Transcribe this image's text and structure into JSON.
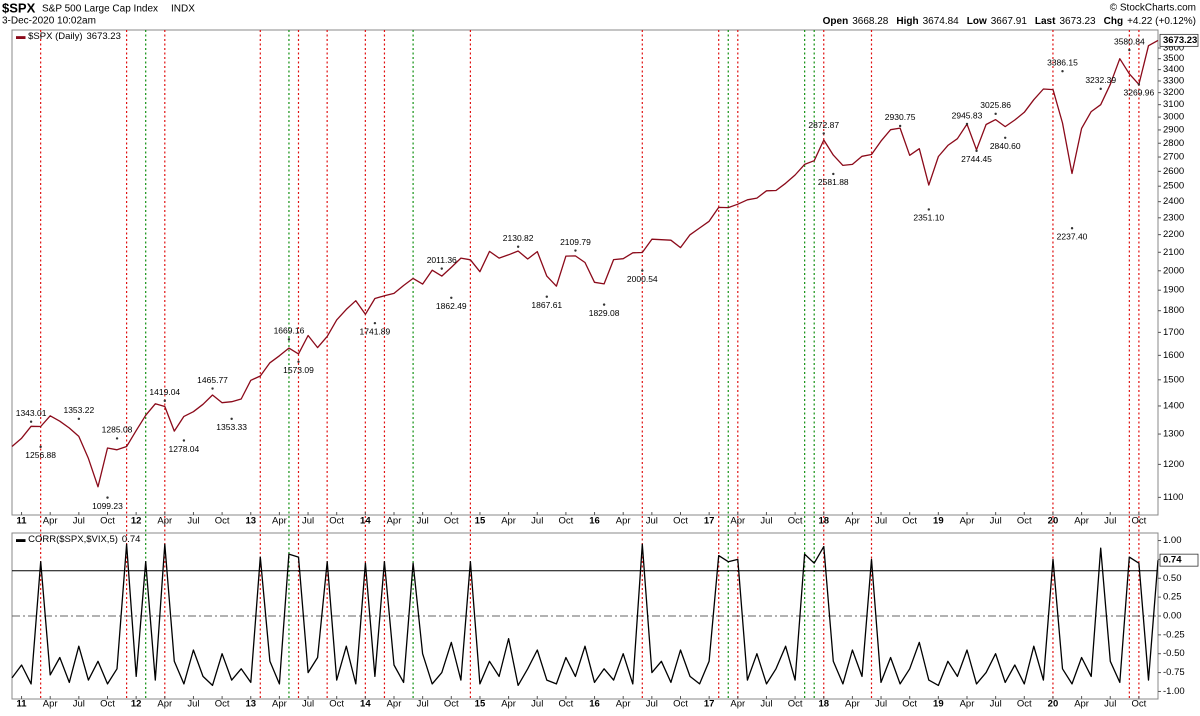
{
  "header": {
    "symbol": "$SPX",
    "name": "S&P 500 Large Cap Index",
    "exchange": "INDX",
    "timestamp": "3-Dec-2020 10:02am",
    "credit": "© StockCharts.com",
    "quote": [
      {
        "label": "Open",
        "value": 3668.28
      },
      {
        "label": "High",
        "value": 3674.84
      },
      {
        "label": "Low",
        "value": 3667.91
      },
      {
        "label": "Last",
        "value": 3673.23
      },
      {
        "label": "Chg",
        "value": "+4.22 (+0.12%)"
      }
    ]
  },
  "chart_data": [
    {
      "type": "line",
      "legend": "$SPX (Daily)",
      "color": "#8b0a1a",
      "yscale": "log",
      "grid": false,
      "x": [
        "2010-12",
        "2011-01",
        "2011-02",
        "2011-03",
        "2011-04",
        "2011-05",
        "2011-06",
        "2011-07",
        "2011-08",
        "2011-09",
        "2011-10",
        "2011-11",
        "2011-12",
        "2012-01",
        "2012-02",
        "2012-03",
        "2012-04",
        "2012-05",
        "2012-06",
        "2012-07",
        "2012-08",
        "2012-09",
        "2012-10",
        "2012-11",
        "2012-12",
        "2013-01",
        "2013-02",
        "2013-03",
        "2013-04",
        "2013-05",
        "2013-06",
        "2013-07",
        "2013-08",
        "2013-09",
        "2013-10",
        "2013-11",
        "2013-12",
        "2014-01",
        "2014-02",
        "2014-03",
        "2014-04",
        "2014-05",
        "2014-06",
        "2014-07",
        "2014-08",
        "2014-09",
        "2014-10",
        "2014-11",
        "2014-12",
        "2015-01",
        "2015-02",
        "2015-03",
        "2015-04",
        "2015-05",
        "2015-06",
        "2015-07",
        "2015-08",
        "2015-09",
        "2015-10",
        "2015-11",
        "2015-12",
        "2016-01",
        "2016-02",
        "2016-03",
        "2016-04",
        "2016-05",
        "2016-06",
        "2016-07",
        "2016-08",
        "2016-09",
        "2016-10",
        "2016-11",
        "2016-12",
        "2017-01",
        "2017-02",
        "2017-03",
        "2017-04",
        "2017-05",
        "2017-06",
        "2017-07",
        "2017-08",
        "2017-09",
        "2017-10",
        "2017-11",
        "2017-12",
        "2018-01",
        "2018-02",
        "2018-03",
        "2018-04",
        "2018-05",
        "2018-06",
        "2018-07",
        "2018-08",
        "2018-09",
        "2018-10",
        "2018-11",
        "2018-12",
        "2019-01",
        "2019-02",
        "2019-03",
        "2019-04",
        "2019-05",
        "2019-06",
        "2019-07",
        "2019-08",
        "2019-09",
        "2019-10",
        "2019-11",
        "2019-12",
        "2020-01",
        "2020-02",
        "2020-03",
        "2020-04",
        "2020-05",
        "2020-06",
        "2020-07",
        "2020-08",
        "2020-09",
        "2020-10",
        "2020-11",
        "2020-12"
      ],
      "values": [
        1258,
        1286,
        1327,
        1326,
        1364,
        1345,
        1321,
        1292,
        1219,
        1131,
        1253,
        1247,
        1258,
        1312,
        1366,
        1408,
        1398,
        1310,
        1362,
        1379,
        1406,
        1441,
        1412,
        1416,
        1426,
        1498,
        1515,
        1569,
        1598,
        1631,
        1606,
        1686,
        1633,
        1682,
        1757,
        1806,
        1848,
        1783,
        1859,
        1872,
        1884,
        1924,
        1960,
        1931,
        2003,
        1972,
        2018,
        2068,
        2059,
        1995,
        2105,
        2068,
        2086,
        2107,
        2063,
        2104,
        1972,
        1920,
        2079,
        2080,
        2044,
        1940,
        1932,
        2060,
        2065,
        2097,
        2099,
        2174,
        2171,
        2168,
        2126,
        2199,
        2239,
        2279,
        2364,
        2363,
        2384,
        2412,
        2423,
        2470,
        2472,
        2519,
        2575,
        2648,
        2674,
        2824,
        2714,
        2641,
        2648,
        2705,
        2718,
        2816,
        2902,
        2914,
        2712,
        2760,
        2507,
        2704,
        2784,
        2834,
        2945,
        2752,
        2942,
        2980,
        2926,
        2977,
        3038,
        3141,
        3231,
        3226,
        2954,
        2585,
        2912,
        3044,
        3100,
        3271,
        3500,
        3363,
        3270,
        3622,
        3673.23
      ],
      "xlim": [
        "2010-12",
        "2020-12"
      ],
      "xticks": [
        {
          "value": "2011-01",
          "label": "11"
        },
        {
          "value": "2011-04",
          "label": "Apr"
        },
        {
          "value": "2011-07",
          "label": "Jul"
        },
        {
          "value": "2011-10",
          "label": "Oct"
        },
        {
          "value": "2012-01",
          "label": "12"
        },
        {
          "value": "2012-04",
          "label": "Apr"
        },
        {
          "value": "2012-07",
          "label": "Jul"
        },
        {
          "value": "2012-10",
          "label": "Oct"
        },
        {
          "value": "2013-01",
          "label": "13"
        },
        {
          "value": "2013-04",
          "label": "Apr"
        },
        {
          "value": "2013-07",
          "label": "Jul"
        },
        {
          "value": "2013-10",
          "label": "Oct"
        },
        {
          "value": "2014-01",
          "label": "14"
        },
        {
          "value": "2014-04",
          "label": "Apr"
        },
        {
          "value": "2014-07",
          "label": "Jul"
        },
        {
          "value": "2014-10",
          "label": "Oct"
        },
        {
          "value": "2015-01",
          "label": "15"
        },
        {
          "value": "2015-04",
          "label": "Apr"
        },
        {
          "value": "2015-07",
          "label": "Jul"
        },
        {
          "value": "2015-10",
          "label": "Oct"
        },
        {
          "value": "2016-01",
          "label": "16"
        },
        {
          "value": "2016-04",
          "label": "Apr"
        },
        {
          "value": "2016-07",
          "label": "Jul"
        },
        {
          "value": "2016-10",
          "label": "Oct"
        },
        {
          "value": "2017-01",
          "label": "17"
        },
        {
          "value": "2017-04",
          "label": "Apr"
        },
        {
          "value": "2017-07",
          "label": "Jul"
        },
        {
          "value": "2017-10",
          "label": "Oct"
        },
        {
          "value": "2018-01",
          "label": "18"
        },
        {
          "value": "2018-04",
          "label": "Apr"
        },
        {
          "value": "2018-07",
          "label": "Jul"
        },
        {
          "value": "2018-10",
          "label": "Oct"
        },
        {
          "value": "2019-01",
          "label": "19"
        },
        {
          "value": "2019-04",
          "label": "Apr"
        },
        {
          "value": "2019-07",
          "label": "Jul"
        },
        {
          "value": "2019-10",
          "label": "Oct"
        },
        {
          "value": "2020-01",
          "label": "20"
        },
        {
          "value": "2020-04",
          "label": "Apr"
        },
        {
          "value": "2020-07",
          "label": "Jul"
        },
        {
          "value": "2020-10",
          "label": "Oct"
        }
      ],
      "ylim": [
        1050,
        3775
      ],
      "yticks": [
        1100,
        1200,
        1300,
        1400,
        1500,
        1600,
        1700,
        1800,
        1900,
        2000,
        2100,
        2200,
        2300,
        2400,
        2500,
        2600,
        2700,
        2800,
        2900,
        3000,
        3100,
        3200,
        3300,
        3400,
        3500,
        3600
      ],
      "annotations": {
        "x": [
          "2011-02",
          "2011-03",
          "2011-07",
          "2011-10",
          "2011-11",
          "2012-04",
          "2012-06",
          "2012-09",
          "2012-11",
          "2013-05",
          "2013-06",
          "2014-02",
          "2014-09",
          "2014-10",
          "2015-05",
          "2015-08",
          "2015-11",
          "2016-02",
          "2016-06",
          "2018-01",
          "2018-02",
          "2018-09",
          "2018-12",
          "2019-04",
          "2019-05",
          "2019-07",
          "2019-08",
          "2020-02",
          "2020-03",
          "2020-06",
          "2020-09",
          "2020-10"
        ],
        "values": [
          1343.01,
          1256.88,
          1353.22,
          1099.23,
          1285.08,
          1419.04,
          1278.04,
          1465.77,
          1353.33,
          1669.16,
          1573.09,
          1741.89,
          2011.36,
          1862.49,
          2130.82,
          1867.61,
          2109.79,
          1829.08,
          2000.54,
          2872.87,
          2581.88,
          2930.75,
          2351.1,
          2945.83,
          2744.45,
          3025.86,
          2840.6,
          3386.15,
          2237.4,
          3232.39,
          3580.84,
          3269.96
        ],
        "value_labels": [
          "1343.01",
          "1256.88",
          "1353.22",
          "1099.23",
          "1285.08",
          "1419.04",
          "1278.04",
          "1465.77",
          "1353.33",
          "1669.16",
          "1573.09",
          "1741.89",
          "2011.36",
          "1862.49",
          "2130.82",
          "1867.61",
          "2109.79",
          "1829.08",
          "2000.54",
          "2872.87",
          "2581.88",
          "2930.75",
          "2351.10",
          "2945.83",
          "2744.45",
          "3025.86",
          "2840.60",
          "3386.15",
          "2237.40",
          "3232.39",
          "3580.84",
          "3269.96"
        ]
      },
      "signal_lines": [
        {
          "color": "#e01010",
          "dates": [
            "2011-03",
            "2011-12",
            "2012-04",
            "2013-02",
            "2013-06",
            "2013-09",
            "2014-01",
            "2014-03",
            "2014-12",
            "2016-06",
            "2017-02",
            "2017-04",
            "2018-01",
            "2018-06",
            "2020-01",
            "2020-09",
            "2020-10"
          ]
        },
        {
          "color": "#109010",
          "dates": [
            "2012-02",
            "2013-05",
            "2014-06",
            "2017-03",
            "2017-11",
            "2017-12"
          ]
        }
      ]
    },
    {
      "type": "line",
      "legend": "CORR($SPX,$VIX,5)",
      "color": "#000000",
      "grid": false,
      "x": [
        "2010-12",
        "2011-01",
        "2011-02",
        "2011-03",
        "2011-04",
        "2011-05",
        "2011-06",
        "2011-07",
        "2011-08",
        "2011-09",
        "2011-10",
        "2011-11",
        "2011-12",
        "2012-01",
        "2012-02",
        "2012-03",
        "2012-04",
        "2012-05",
        "2012-06",
        "2012-07",
        "2012-08",
        "2012-09",
        "2012-10",
        "2012-11",
        "2012-12",
        "2013-01",
        "2013-02",
        "2013-03",
        "2013-04",
        "2013-05",
        "2013-06",
        "2013-07",
        "2013-08",
        "2013-09",
        "2013-10",
        "2013-11",
        "2013-12",
        "2014-01",
        "2014-02",
        "2014-03",
        "2014-04",
        "2014-05",
        "2014-06",
        "2014-07",
        "2014-08",
        "2014-09",
        "2014-10",
        "2014-11",
        "2014-12",
        "2015-01",
        "2015-02",
        "2015-03",
        "2015-04",
        "2015-05",
        "2015-06",
        "2015-07",
        "2015-08",
        "2015-09",
        "2015-10",
        "2015-11",
        "2015-12",
        "2016-01",
        "2016-02",
        "2016-03",
        "2016-04",
        "2016-05",
        "2016-06",
        "2016-07",
        "2016-08",
        "2016-09",
        "2016-10",
        "2016-11",
        "2016-12",
        "2017-01",
        "2017-02",
        "2017-03",
        "2017-04",
        "2017-05",
        "2017-06",
        "2017-07",
        "2017-08",
        "2017-09",
        "2017-10",
        "2017-11",
        "2017-12",
        "2018-01",
        "2018-02",
        "2018-03",
        "2018-04",
        "2018-05",
        "2018-06",
        "2018-07",
        "2018-08",
        "2018-09",
        "2018-10",
        "2018-11",
        "2018-12",
        "2019-01",
        "2019-02",
        "2019-03",
        "2019-04",
        "2019-05",
        "2019-06",
        "2019-07",
        "2019-08",
        "2019-09",
        "2019-10",
        "2019-11",
        "2019-12",
        "2020-01",
        "2020-02",
        "2020-03",
        "2020-04",
        "2020-05",
        "2020-06",
        "2020-07",
        "2020-08",
        "2020-09",
        "2020-10",
        "2020-11",
        "2020-12"
      ],
      "values": [
        -0.82,
        -0.65,
        -0.9,
        0.72,
        -0.78,
        -0.55,
        -0.88,
        -0.4,
        -0.85,
        -0.6,
        -0.9,
        -0.7,
        0.95,
        -0.8,
        0.72,
        -0.85,
        0.95,
        -0.6,
        -0.9,
        -0.45,
        -0.8,
        -0.92,
        -0.5,
        -0.85,
        -0.7,
        -0.88,
        0.78,
        -0.6,
        -0.9,
        0.82,
        0.78,
        -0.75,
        -0.55,
        0.72,
        -0.85,
        -0.4,
        -0.9,
        0.7,
        -0.8,
        0.72,
        -0.65,
        -0.88,
        0.7,
        -0.5,
        -0.9,
        -0.75,
        -0.35,
        -0.85,
        0.72,
        -0.9,
        -0.6,
        -0.8,
        -0.3,
        -0.92,
        -0.7,
        -0.45,
        -0.85,
        -0.9,
        -0.55,
        -0.8,
        -0.4,
        -0.88,
        -0.7,
        -0.85,
        -0.5,
        -0.9,
        0.95,
        -0.75,
        -0.6,
        -0.88,
        -0.45,
        -0.8,
        -0.9,
        -0.6,
        0.8,
        0.72,
        0.75,
        -0.85,
        -0.5,
        -0.9,
        -0.7,
        -0.4,
        -0.85,
        0.82,
        0.7,
        0.92,
        -0.6,
        -0.9,
        -0.45,
        -0.8,
        0.75,
        -0.88,
        -0.55,
        -0.9,
        -0.7,
        -0.35,
        -0.85,
        -0.92,
        -0.6,
        -0.8,
        -0.45,
        -0.9,
        -0.75,
        -0.5,
        -0.88,
        -0.65,
        -0.9,
        -0.4,
        -0.85,
        0.75,
        -0.7,
        -0.9,
        -0.55,
        -0.8,
        0.9,
        -0.6,
        -0.88,
        0.78,
        0.7,
        -0.85,
        0.74
      ],
      "xlim": [
        "2010-12",
        "2020-12"
      ],
      "xticks": [
        {
          "value": "2011-01",
          "label": "11"
        },
        {
          "value": "2011-04",
          "label": "Apr"
        },
        {
          "value": "2011-07",
          "label": "Jul"
        },
        {
          "value": "2011-10",
          "label": "Oct"
        },
        {
          "value": "2012-01",
          "label": "12"
        },
        {
          "value": "2012-04",
          "label": "Apr"
        },
        {
          "value": "2012-07",
          "label": "Jul"
        },
        {
          "value": "2012-10",
          "label": "Oct"
        },
        {
          "value": "2013-01",
          "label": "13"
        },
        {
          "value": "2013-04",
          "label": "Apr"
        },
        {
          "value": "2013-07",
          "label": "Jul"
        },
        {
          "value": "2013-10",
          "label": "Oct"
        },
        {
          "value": "2014-01",
          "label": "14"
        },
        {
          "value": "2014-04",
          "label": "Apr"
        },
        {
          "value": "2014-07",
          "label": "Jul"
        },
        {
          "value": "2014-10",
          "label": "Oct"
        },
        {
          "value": "2015-01",
          "label": "15"
        },
        {
          "value": "2015-04",
          "label": "Apr"
        },
        {
          "value": "2015-07",
          "label": "Jul"
        },
        {
          "value": "2015-10",
          "label": "Oct"
        },
        {
          "value": "2016-01",
          "label": "16"
        },
        {
          "value": "2016-04",
          "label": "Apr"
        },
        {
          "value": "2016-07",
          "label": "Jul"
        },
        {
          "value": "2016-10",
          "label": "Oct"
        },
        {
          "value": "2017-01",
          "label": "17"
        },
        {
          "value": "2017-04",
          "label": "Apr"
        },
        {
          "value": "2017-07",
          "label": "Jul"
        },
        {
          "value": "2017-10",
          "label": "Oct"
        },
        {
          "value": "2018-01",
          "label": "18"
        },
        {
          "value": "2018-04",
          "label": "Apr"
        },
        {
          "value": "2018-07",
          "label": "Jul"
        },
        {
          "value": "2018-10",
          "label": "Oct"
        },
        {
          "value": "2019-01",
          "label": "19"
        },
        {
          "value": "2019-04",
          "label": "Apr"
        },
        {
          "value": "2019-07",
          "label": "Jul"
        },
        {
          "value": "2019-10",
          "label": "Oct"
        },
        {
          "value": "2020-01",
          "label": "20"
        },
        {
          "value": "2020-04",
          "label": "Apr"
        },
        {
          "value": "2020-07",
          "label": "Jul"
        },
        {
          "value": "2020-10",
          "label": "Oct"
        }
      ],
      "ylim": [
        -1.1,
        1.1
      ],
      "yticks": [
        {
          "value": 1,
          "label": "1.00"
        },
        {
          "value": 0.75,
          "label": "0.75"
        },
        {
          "value": 0.5,
          "label": "0.50"
        },
        {
          "value": 0.25,
          "label": "0.25"
        },
        {
          "value": 0,
          "label": "0.00"
        },
        {
          "value": -0.25,
          "label": "-0.25"
        },
        {
          "value": -0.5,
          "label": "-0.50"
        },
        {
          "value": -0.75,
          "label": "-0.75"
        },
        {
          "value": -1,
          "label": "-1.00"
        }
      ],
      "hlines": [
        {
          "value": 0.6,
          "style": "solid"
        },
        {
          "value": 0,
          "style": "dashdot"
        }
      ]
    }
  ]
}
